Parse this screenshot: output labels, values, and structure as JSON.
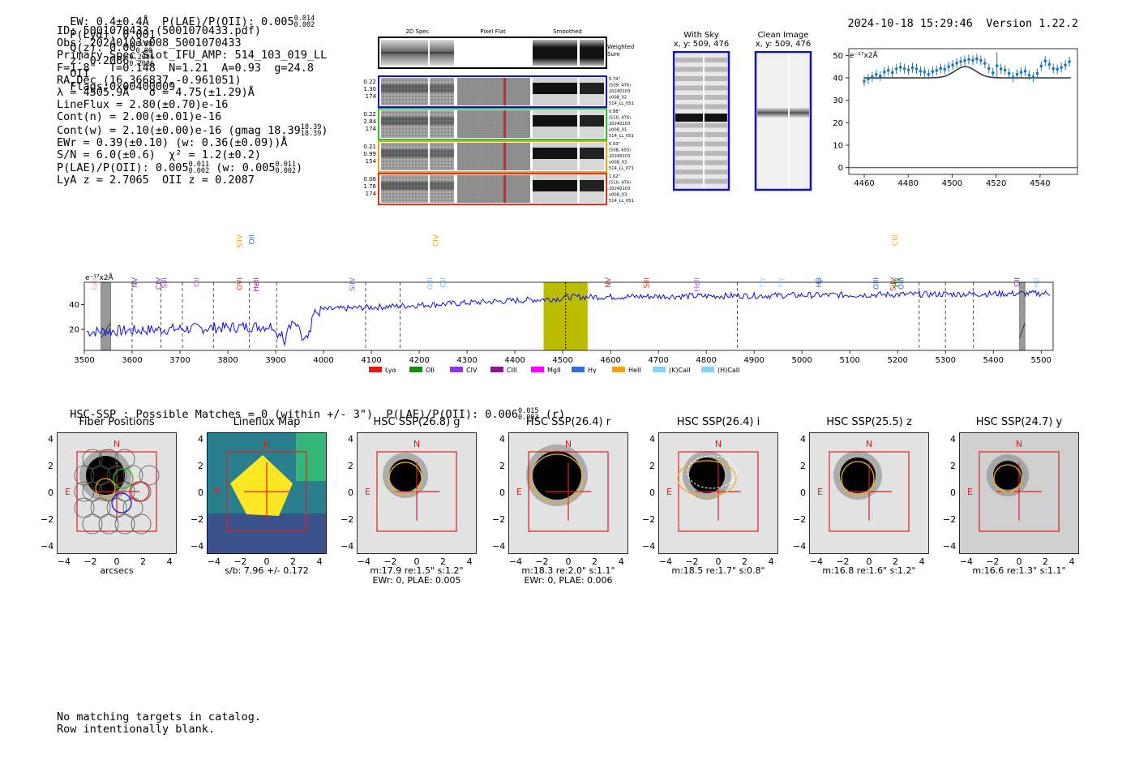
{
  "header": {
    "left": "EW: 0.4±0.4Å  P(LAE)/P(OII): 0.005",
    "left_sup": "0.014",
    "left_sub": "0.002",
    "plya": "P(Lyα): 0.001",
    "qz": "Q(z): 0.00",
    "qz_sup": "0.00",
    "qz_sub": "0.00",
    "z": "z: 0.2086",
    "z_sup": "0.2086",
    "z_sub": "0.2086",
    "z_line": "OII",
    "flags": "Flags:0x00400009",
    "date": "2024-10-18 15:29:46",
    "version": "Version 1.22.2"
  },
  "info": {
    "id": "ID: 5001070433 (5001070433.pdf)",
    "obs": "Obs: 20240103v008_5001070433",
    "primary": "Primary Spec_Slot_IFU_AMP: 514_103_019_LL",
    "params": "F=1.8\"  T=0.148  N=1.21  A=0.93  g=24.8",
    "radec": "RA,Dec (16.366837,-0.961051)",
    "lambda": "λ = 4505.9Å   σ = 4.75(±1.29)Å",
    "lineflux": "LineFlux = 2.80(±0.70)e-16",
    "contn": "Cont(n) = 2.00(±0.01)e-16",
    "contw": "Cont(w) = 2.10(±0.00)e-16 (gmag 18.39",
    "contw_sup": "18.39",
    "contw_sub": "18.39",
    "ewr": "EWr = 0.39(±0.10) (w: 0.36(±0.09))Å",
    "sn": "S/N = 6.0(±0.6)  χ² = 1.2(±0.2)",
    "plae": "P(LAE)/P(OII): 0.005",
    "plae_sup": "0.011",
    "plae_sub": "0.002",
    "plae_w": "(w: 0.005",
    "plae_w_sup": "0.011",
    "plae_w_sub": "0.002",
    "lya": "LyA z = 2.7065  OII z = 0.2087"
  },
  "cutouts": {
    "col1": "2D Spec",
    "col2": "Pixel Flat",
    "col3": "Smoothed",
    "weighted": "Weighted\nSum",
    "rows": [
      {
        "left": [
          "0.22",
          "1.30",
          "174"
        ],
        "right": [
          "0.74\"",
          "(509, 476)",
          "20240103",
          "v008_02",
          "514_LL_051"
        ]
      },
      {
        "left": [
          "0.22",
          "2.84",
          "174"
        ],
        "right": [
          "0.88\"",
          "(510, 476)",
          "20240103",
          "v008_01",
          "514_LL_051"
        ]
      },
      {
        "left": [
          "0.21",
          "0.99",
          "154"
        ],
        "right": [
          "0.93\"",
          "(508, 650)",
          "20240103",
          "v008_03",
          "514_LL_071"
        ]
      },
      {
        "left": [
          "0.06",
          "1.76",
          "174"
        ],
        "right": [
          "1.62\"",
          "(510, 476)",
          "20240103",
          "v008_03",
          "514_LL_051"
        ]
      }
    ]
  },
  "sky": {
    "with_sky": "With Sky",
    "with_sky_xy": "x, y: 509, 476",
    "clean": "Clean Image",
    "clean_xy": "x, y: 509, 476"
  },
  "zoom_chart": {
    "ylabel": "e⁻¹⁷x2Å",
    "xticks": [
      "4460",
      "4480",
      "4500",
      "4520",
      "4540"
    ],
    "yticks": [
      "0",
      "10",
      "20",
      "30",
      "40",
      "50"
    ]
  },
  "spectrum": {
    "ylabel": "e⁻¹⁷x2Å",
    "xticks": [
      "3500",
      "3600",
      "3700",
      "3800",
      "3900",
      "4000",
      "4100",
      "4200",
      "4300",
      "4400",
      "4500",
      "4600",
      "4700",
      "4800",
      "4900",
      "5000",
      "5100",
      "5200",
      "5300",
      "5400",
      "5500"
    ],
    "yticks": [
      "20",
      "40"
    ],
    "lines": [
      {
        "label": "Lyα",
        "color": "#e0a8b0"
      },
      {
        "label": "NV",
        "color": "#9a3bd6"
      },
      {
        "label": "CIV",
        "color": "#9a3bd6"
      },
      {
        "label": "SiII",
        "color": "#9a3bd6"
      },
      {
        "label": "CII",
        "color": "#e040e0"
      },
      {
        "label": "SiIV",
        "color": "#f0a020"
      },
      {
        "label": "OII",
        "color": "#3070e0"
      },
      {
        "label": "OVI",
        "color": "#e03020"
      },
      {
        "label": "HeII",
        "color": "#9a1a8a"
      },
      {
        "label": "SiIV",
        "color": "#a060e0"
      },
      {
        "label": "OIII",
        "color": "#70c0f0"
      },
      {
        "label": "CIV",
        "color": "#f0a020"
      },
      {
        "label": "OII",
        "color": "#70c0f0"
      },
      {
        "label": "NV",
        "color": "#e03020"
      },
      {
        "label": "SiII",
        "color": "#e03020"
      },
      {
        "label": "HeII",
        "color": "#a060e0"
      },
      {
        "label": "Hγ",
        "color": "#a0d8f0"
      },
      {
        "label": "Hγ",
        "color": "#a0d8f0"
      },
      {
        "label": "Hβ",
        "color": "#3060d0"
      },
      {
        "label": "OIII",
        "color": "#3060d0"
      },
      {
        "label": "SiIV",
        "color": "#e03020"
      },
      {
        "label": "OIII",
        "color": "#3060d0"
      },
      {
        "label": "CIII",
        "color": "#f0a020"
      },
      {
        "label": "Hγ",
        "color": "#208020"
      },
      {
        "label": "CII",
        "color": "#9a1a8a"
      },
      {
        "label": "Hβ",
        "color": "#a0d8f0"
      }
    ],
    "legend": [
      {
        "label": "Lyα",
        "color": "#e31a1c"
      },
      {
        "label": "OII",
        "color": "#1a8a1a"
      },
      {
        "label": "CIV",
        "color": "#8a3be0"
      },
      {
        "label": "CIII",
        "color": "#8a1a8a"
      },
      {
        "label": "MgII",
        "color": "#ff00ff"
      },
      {
        "label": "Hγ",
        "color": "#3b6be0"
      },
      {
        "label": "HeII",
        "color": "#f0a020"
      },
      {
        "label": "(K)CaII",
        "color": "#8ccff0"
      },
      {
        "label": "(H)CaII",
        "color": "#8ccff0"
      }
    ]
  },
  "hsc": {
    "title": "HSC-SSP : Possible Matches = 0 (within +/- 3\")  P(LAE)/P(OII): 0.006",
    "title_sup": "0.015",
    "title_sub": "0.003",
    "title_band": "(r)",
    "panels": [
      {
        "title": "Fiber Positions",
        "cap1": "arcsecs",
        "cap2": ""
      },
      {
        "title": "Lineflux Map",
        "cap1": "s/b: 7.96 +/- 0.172",
        "cap2": ""
      },
      {
        "title": "HSC SSP(26.8) g",
        "cap1": "m:17.9  re:1.5\"  s:1.2\"",
        "cap2": "EWr: 0, PLAE: 0.005"
      },
      {
        "title": "HSC SSP(26.4) r",
        "cap1": "m:18.3  re:2.0\"  s:1.1\"",
        "cap2": "EWr: 0, PLAE: 0.006"
      },
      {
        "title": "HSC SSP(26.4) i",
        "cap1": "m:18.5  re:1.7\"  s:0.8\"",
        "cap2": ""
      },
      {
        "title": "HSC SSP(25.5) z",
        "cap1": "m:16.8  re:1.6\"  s:1.2\"",
        "cap2": ""
      },
      {
        "title": "HSC SSP(24.7) y",
        "cap1": "m:16.6  re:1.3\"  s:1.1\"",
        "cap2": ""
      }
    ],
    "ticks": [
      "−4",
      "−2",
      "0",
      "2",
      "4"
    ],
    "north": "N",
    "east": "E"
  },
  "footer": {
    "line1": "No matching targets in catalog.",
    "line2": "Row intentionally blank."
  }
}
